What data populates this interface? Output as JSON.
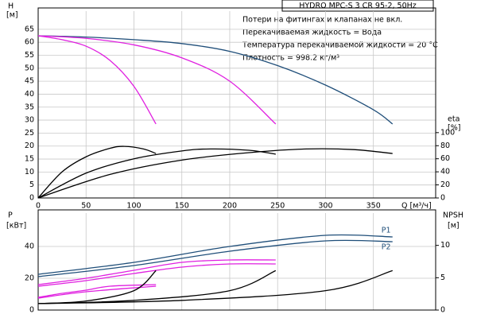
{
  "chart_data": [
    {
      "type": "line",
      "title": "HYDRO MPC-S 3 CR 95-2, 50Hz",
      "notes": [
        "Потери на фитингах и клапанах не вкл.",
        "Перекачиваемая жидкость = Вода",
        "Температура перекачиваемой жидкости = 20 °C",
        "Плотность = 998.2 кг/м³"
      ],
      "xlabel": "Q [м³/ч]",
      "ylabel": "H",
      "yunit": "[м]",
      "y2label": "eta",
      "y2unit": "[%]",
      "xlim": [
        0,
        415
      ],
      "xticks": [
        0,
        50,
        100,
        150,
        200,
        250,
        300,
        350
      ],
      "ylim": [
        0,
        72
      ],
      "yticks": [
        0,
        5,
        10,
        15,
        20,
        25,
        30,
        35,
        40,
        45,
        50,
        55,
        60,
        65
      ],
      "y2lim": [
        0,
        286
      ],
      "y2ticks": [
        0,
        20,
        40,
        60,
        80,
        100
      ],
      "grid": true,
      "series": [
        {
          "color": "#1f4e79",
          "x": [
            0,
            50,
            100,
            150,
            200,
            250,
            300,
            350,
            370
          ],
          "values": [
            62.5,
            62,
            61,
            59.5,
            56.5,
            51,
            43.5,
            34,
            28.5
          ]
        },
        {
          "color": "#e020e0",
          "x": [
            0,
            50,
            100,
            150,
            200,
            248
          ],
          "values": [
            62.5,
            61.5,
            59,
            54,
            45,
            28.5
          ]
        },
        {
          "color": "#e020e0",
          "x": [
            0,
            25,
            50,
            75,
            100,
            123
          ],
          "values": [
            62.5,
            61,
            58.5,
            53,
            43,
            28.5
          ]
        },
        {
          "color": "#000000",
          "axis": "y2",
          "x": [
            0,
            25,
            50,
            75,
            90,
            110,
            123
          ],
          "values": [
            0,
            40,
            63,
            76,
            79,
            75,
            68
          ]
        },
        {
          "color": "#000000",
          "axis": "y2",
          "x": [
            0,
            50,
            100,
            150,
            180,
            220,
            248
          ],
          "values": [
            0,
            38,
            60,
            72,
            75,
            73,
            67
          ]
        },
        {
          "color": "#000000",
          "axis": "y2",
          "x": [
            0,
            75,
            150,
            225,
            280,
            330,
            370
          ],
          "values": [
            0,
            36,
            58,
            70,
            75,
            74,
            68
          ]
        }
      ]
    },
    {
      "type": "line",
      "ylabel": "P",
      "yunit": "[кВт]",
      "y2label": "NPSH",
      "y2unit": "[м]",
      "xlim": [
        0,
        415
      ],
      "xticks": [
        0,
        50,
        100,
        150,
        200,
        250,
        300,
        350
      ],
      "ylim": [
        0,
        61
      ],
      "yticks": [
        0,
        20,
        40
      ],
      "y2lim": [
        0,
        15
      ],
      "y2ticks": [
        0,
        5,
        10
      ],
      "grid": true,
      "series": [
        {
          "name": "P1",
          "color": "#1f4e79",
          "x": [
            0,
            100,
            200,
            300,
            370
          ],
          "values": [
            22.5,
            30,
            40,
            47,
            46
          ]
        },
        {
          "name": "P2",
          "color": "#1f4e79",
          "x": [
            0,
            100,
            200,
            300,
            370
          ],
          "values": [
            21,
            28,
            37,
            43.5,
            43
          ]
        },
        {
          "color": "#e020e0",
          "x": [
            0,
            50,
            100,
            150,
            200,
            248
          ],
          "values": [
            16,
            20,
            25,
            30,
            31.5,
            31.5
          ]
        },
        {
          "color": "#e020e0",
          "x": [
            0,
            50,
            100,
            150,
            200,
            248
          ],
          "values": [
            15,
            18.5,
            23,
            27,
            29,
            29
          ]
        },
        {
          "color": "#e020e0",
          "x": [
            0,
            25,
            50,
            75,
            123
          ],
          "values": [
            8,
            10.5,
            12.5,
            15,
            16
          ]
        },
        {
          "color": "#e020e0",
          "x": [
            0,
            50,
            123
          ],
          "values": [
            7.5,
            11.5,
            15
          ]
        },
        {
          "color": "#000000",
          "axis": "y2",
          "x": [
            0,
            50,
            100,
            123
          ],
          "values": [
            1,
            1.4,
            3,
            6.1
          ]
        },
        {
          "color": "#000000",
          "axis": "y2",
          "x": [
            0,
            100,
            200,
            248
          ],
          "values": [
            1,
            1.5,
            3,
            6.1
          ]
        },
        {
          "color": "#000000",
          "axis": "y2",
          "x": [
            0,
            150,
            300,
            370
          ],
          "values": [
            1,
            1.5,
            3,
            6.1
          ]
        }
      ]
    }
  ]
}
